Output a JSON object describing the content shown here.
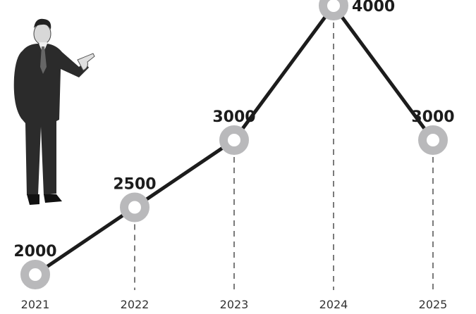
{
  "chart_data": {
    "type": "line",
    "categories": [
      "2021",
      "2022",
      "2023",
      "2024",
      "2025"
    ],
    "values": [
      2000,
      2500,
      3000,
      4000,
      3000
    ],
    "color": "#1c1c1c",
    "marker_color": "#b9b9bb"
  }
}
